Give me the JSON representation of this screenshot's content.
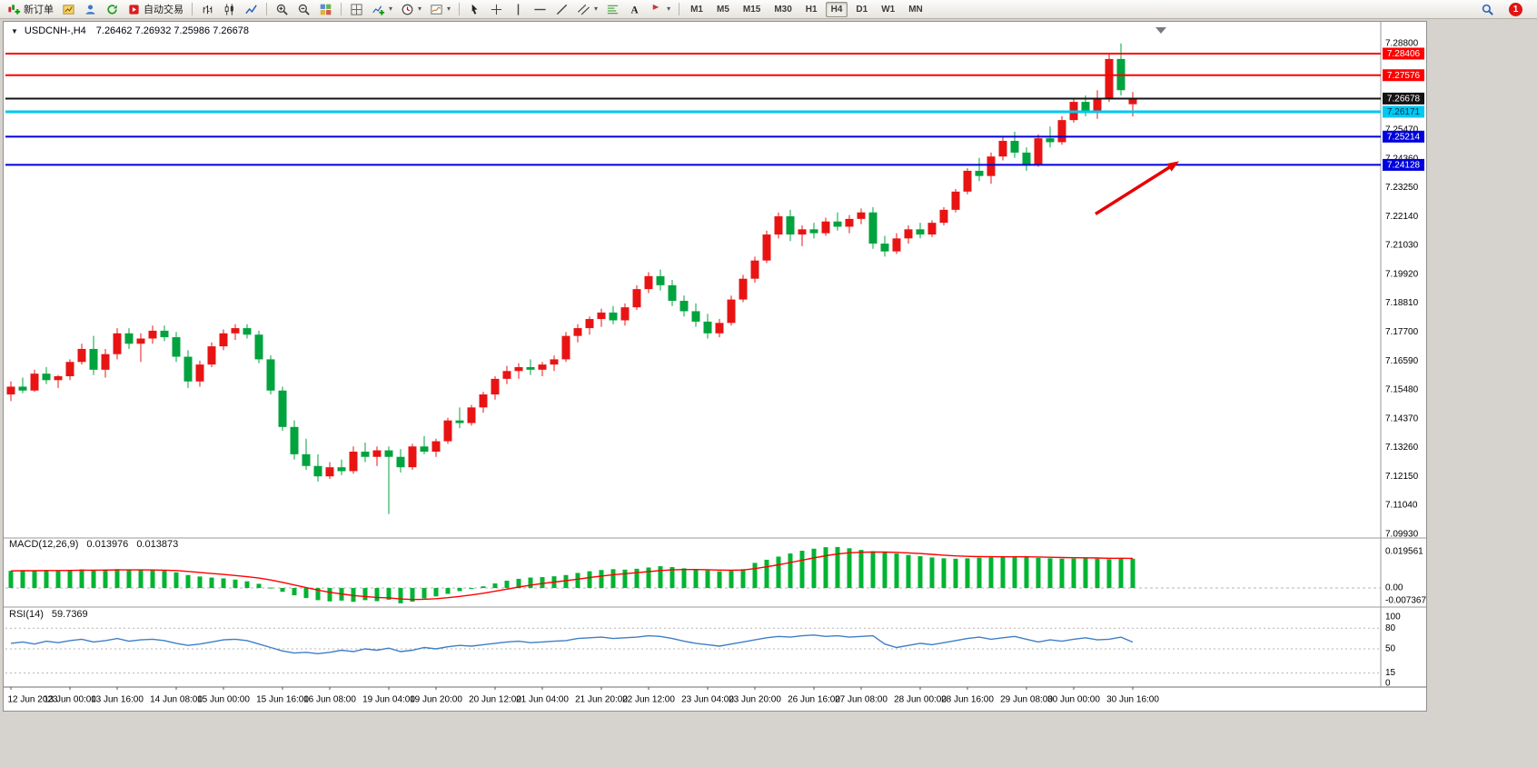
{
  "window": {
    "background": "#d6d3ce",
    "accent_red": "#e01414"
  },
  "toolbar": {
    "groups": [
      {
        "name": "trade",
        "items": [
          {
            "name": "new-order-button",
            "icon": "new-order-icon",
            "label": "新订单"
          },
          {
            "name": "new-chart-button",
            "icon": "new-chart-icon"
          },
          {
            "name": "profiles-button",
            "icon": "profiles-icon"
          },
          {
            "name": "data-window-button",
            "icon": "data-window-icon"
          },
          {
            "name": "autotrading-button",
            "icon": "autotrading-icon",
            "label": "自动交易"
          }
        ]
      },
      {
        "name": "chart-type",
        "items": [
          {
            "name": "bar-chart-button",
            "icon": "bar-chart-icon"
          },
          {
            "name": "candlestick-button",
            "icon": "candlestick-icon"
          },
          {
            "name": "line-chart-button",
            "icon": "line-chart-icon"
          }
        ]
      },
      {
        "name": "zoom",
        "items": [
          {
            "name": "zoom-in-button",
            "icon": "zoom-in-icon"
          },
          {
            "name": "zoom-out-button",
            "icon": "zoom-out-icon"
          },
          {
            "name": "tile-windows-button",
            "icon": "tile-windows-icon"
          }
        ]
      },
      {
        "name": "chart-tools",
        "items": [
          {
            "name": "auto-arrange-button",
            "icon": "auto-arrange-icon"
          },
          {
            "name": "indicators-button",
            "icon": "indicators-icon",
            "caret": true
          },
          {
            "name": "periods-button",
            "icon": "periods-icon",
            "caret": true
          },
          {
            "name": "templates-button",
            "icon": "templates-icon",
            "caret": true
          }
        ]
      },
      {
        "name": "objects",
        "items": [
          {
            "name": "cursor-button",
            "icon": "cursor-icon"
          },
          {
            "name": "crosshair-button",
            "icon": "crosshair-icon"
          },
          {
            "name": "vertical-line-button",
            "icon": "vertical-line-icon"
          },
          {
            "name": "horizontal-line-button",
            "icon": "horizontal-line-icon"
          },
          {
            "name": "trendline-button",
            "icon": "trendline-icon"
          },
          {
            "name": "channel-button",
            "icon": "channel-icon",
            "caret": true
          },
          {
            "name": "fibonacci-button",
            "icon": "fibonacci-icon"
          },
          {
            "name": "text-button",
            "icon": "text-icon"
          },
          {
            "name": "arrow-label-button",
            "icon": "arrow-label-icon",
            "caret": true
          }
        ]
      }
    ],
    "timeframes": [
      {
        "label": "M1"
      },
      {
        "label": "M5"
      },
      {
        "label": "M15"
      },
      {
        "label": "M30"
      },
      {
        "label": "H1"
      },
      {
        "label": "H4",
        "active": true
      },
      {
        "label": "D1"
      },
      {
        "label": "W1"
      },
      {
        "label": "MN"
      }
    ],
    "right_items": [
      {
        "name": "search-button",
        "icon": "search-icon"
      },
      {
        "name": "notifications-button",
        "icon": "notification-icon",
        "badge": "1"
      }
    ]
  },
  "chart": {
    "header": {
      "collapse_glyph": "▼",
      "symbol": "USDCNH-,H4",
      "ohlc": "7.26462 7.26932 7.25986 7.26678"
    }
  },
  "chart_data": [
    {
      "type": "candlestick",
      "title": "USDCNH-,H4",
      "timeframe": "H4",
      "last_bar": {
        "open": 7.26462,
        "high": 7.26932,
        "low": 7.25986,
        "close": 7.26678
      },
      "up_color": "#e81414",
      "down_color": "#00a33e",
      "ylim": [
        7.0985,
        7.29
      ],
      "price_ticks": [
        "7.28800",
        "7.26580",
        "7.25470",
        "7.24360",
        "7.23250",
        "7.22140",
        "7.21030",
        "7.19920",
        "7.18810",
        "7.17700",
        "7.16590",
        "7.15480",
        "7.14370",
        "7.13260",
        "7.12150",
        "7.11040",
        "7.09930"
      ],
      "time_labels": [
        "12 Jun 2023",
        "13 Jun 00:00",
        "13 Jun 16:00",
        "14 Jun 08:00",
        "15 Jun 00:00",
        "15 Jun 16:00",
        "16 Jun 08:00",
        "19 Jun 04:00",
        "19 Jun 20:00",
        "20 Jun 12:00",
        "21 Jun 04:00",
        "21 Jun 20:00",
        "22 Jun 12:00",
        "23 Jun 04:00",
        "23 Jun 20:00",
        "26 Jun 16:00",
        "27 Jun 08:00",
        "28 Jun 00:00",
        "28 Jun 16:00",
        "29 Jun 08:00",
        "30 Jun 00:00",
        "30 Jun 16:00"
      ],
      "horizontal_lines": [
        {
          "price": 7.28406,
          "label": "7.28406",
          "color": "#ff0000",
          "badge_bg": "#ff0000",
          "badge_fg": "#ffffff",
          "width": 2
        },
        {
          "price": 7.27576,
          "label": "7.27576",
          "color": "#ff0000",
          "badge_bg": "#ff0000",
          "badge_fg": "#ffffff",
          "width": 2
        },
        {
          "price": 7.26678,
          "label": "7.26678",
          "color": "#141414",
          "badge_bg": "#141414",
          "badge_fg": "#ffffff",
          "width": 2
        },
        {
          "price": 7.26171,
          "label": "7.26171",
          "color": "#00c8f0",
          "badge_bg": "#00c8f0",
          "badge_fg": "#003050",
          "width": 3
        },
        {
          "price": 7.25214,
          "label": "7.25214",
          "color": "#0000dc",
          "badge_bg": "#0000dc",
          "badge_fg": "#ffffff",
          "width": 2
        },
        {
          "price": 7.24128,
          "label": "7.24128",
          "color": "#0000dc",
          "badge_bg": "#0000dc",
          "badge_fg": "#ffffff",
          "width": 2
        }
      ],
      "annotation": {
        "type": "arrow",
        "color": "#e80000",
        "points_to_price": 7.24128
      },
      "candles": [
        [
          7.153,
          7.158,
          7.1505,
          7.156
        ],
        [
          7.156,
          7.1595,
          7.1535,
          7.1545
        ],
        [
          7.1545,
          7.1625,
          7.154,
          7.161
        ],
        [
          7.161,
          7.1635,
          7.157,
          7.1585
        ],
        [
          7.1585,
          7.1605,
          7.1555,
          7.16
        ],
        [
          7.16,
          7.1665,
          7.1585,
          7.1655
        ],
        [
          7.1655,
          7.1725,
          7.1645,
          7.1705
        ],
        [
          7.1705,
          7.1755,
          7.1605,
          7.1625
        ],
        [
          7.1625,
          7.1705,
          7.1595,
          7.1685
        ],
        [
          7.1685,
          7.1785,
          7.1665,
          7.1765
        ],
        [
          7.1765,
          7.1785,
          7.1705,
          7.1725
        ],
        [
          7.1725,
          7.1765,
          7.1655,
          7.1745
        ],
        [
          7.1745,
          7.1795,
          7.1725,
          7.1775
        ],
        [
          7.1775,
          7.1795,
          7.1735,
          7.175
        ],
        [
          7.175,
          7.177,
          7.1655,
          7.1675
        ],
        [
          7.1675,
          7.17,
          7.1555,
          7.158
        ],
        [
          7.158,
          7.166,
          7.156,
          7.1645
        ],
        [
          7.1645,
          7.173,
          7.1635,
          7.1715
        ],
        [
          7.1715,
          7.178,
          7.17,
          7.1765
        ],
        [
          7.1765,
          7.18,
          7.174,
          7.1785
        ],
        [
          7.1785,
          7.18,
          7.1745,
          7.176
        ],
        [
          7.176,
          7.1775,
          7.165,
          7.1665
        ],
        [
          7.1665,
          7.168,
          7.153,
          7.1545
        ],
        [
          7.1545,
          7.156,
          7.139,
          7.1405
        ],
        [
          7.1405,
          7.143,
          7.128,
          7.13
        ],
        [
          7.13,
          7.136,
          7.124,
          7.1255
        ],
        [
          7.1255,
          7.13,
          7.1195,
          7.1215
        ],
        [
          7.1215,
          7.127,
          7.1205,
          7.125
        ],
        [
          7.125,
          7.128,
          7.122,
          7.1235
        ],
        [
          7.1235,
          7.133,
          7.1225,
          7.131
        ],
        [
          7.131,
          7.1345,
          7.127,
          7.129
        ],
        [
          7.129,
          7.133,
          7.1255,
          7.1315
        ],
        [
          7.1315,
          7.133,
          7.107,
          7.129
        ],
        [
          7.129,
          7.132,
          7.123,
          7.125
        ],
        [
          7.125,
          7.134,
          7.124,
          7.133
        ],
        [
          7.133,
          7.137,
          7.13,
          7.131
        ],
        [
          7.131,
          7.136,
          7.129,
          7.135
        ],
        [
          7.135,
          7.144,
          7.134,
          7.143
        ],
        [
          7.143,
          7.148,
          7.14,
          7.142
        ],
        [
          7.142,
          7.149,
          7.141,
          7.148
        ],
        [
          7.148,
          7.154,
          7.146,
          7.153
        ],
        [
          7.153,
          7.16,
          7.151,
          7.159
        ],
        [
          7.159,
          7.164,
          7.157,
          7.162
        ],
        [
          7.162,
          7.165,
          7.159,
          7.1635
        ],
        [
          7.1635,
          7.1665,
          7.1605,
          7.1625
        ],
        [
          7.1625,
          7.1655,
          7.16,
          7.1645
        ],
        [
          7.1645,
          7.168,
          7.162,
          7.1665
        ],
        [
          7.1665,
          7.177,
          7.1655,
          7.1755
        ],
        [
          7.1755,
          7.18,
          7.173,
          7.1785
        ],
        [
          7.1785,
          7.183,
          7.176,
          7.182
        ],
        [
          7.182,
          7.186,
          7.179,
          7.1845
        ],
        [
          7.1845,
          7.187,
          7.18,
          7.1815
        ],
        [
          7.1815,
          7.188,
          7.1795,
          7.1865
        ],
        [
          7.1865,
          7.195,
          7.1855,
          7.1935
        ],
        [
          7.1935,
          7.2,
          7.192,
          7.1985
        ],
        [
          7.1985,
          7.201,
          7.193,
          7.195
        ],
        [
          7.195,
          7.197,
          7.187,
          7.189
        ],
        [
          7.189,
          7.191,
          7.183,
          7.185
        ],
        [
          7.185,
          7.188,
          7.179,
          7.181
        ],
        [
          7.181,
          7.184,
          7.1745,
          7.1765
        ],
        [
          7.1765,
          7.182,
          7.175,
          7.1805
        ],
        [
          7.1805,
          7.191,
          7.1795,
          7.1895
        ],
        [
          7.1895,
          7.199,
          7.1885,
          7.1975
        ],
        [
          7.1975,
          7.206,
          7.196,
          7.2045
        ],
        [
          7.2045,
          7.216,
          7.2035,
          7.2145
        ],
        [
          7.2145,
          7.223,
          7.213,
          7.2215
        ],
        [
          7.2215,
          7.224,
          7.212,
          7.2145
        ],
        [
          7.2145,
          7.218,
          7.21,
          7.2165
        ],
        [
          7.2165,
          7.219,
          7.213,
          7.215
        ],
        [
          7.215,
          7.221,
          7.214,
          7.2195
        ],
        [
          7.2195,
          7.223,
          7.216,
          7.2175
        ],
        [
          7.2175,
          7.222,
          7.215,
          7.2205
        ],
        [
          7.2205,
          7.2245,
          7.2185,
          7.223
        ],
        [
          7.223,
          7.225,
          7.209,
          7.211
        ],
        [
          7.211,
          7.214,
          7.206,
          7.208
        ],
        [
          7.208,
          7.215,
          7.207,
          7.213
        ],
        [
          7.213,
          7.218,
          7.211,
          7.2165
        ],
        [
          7.2165,
          7.219,
          7.213,
          7.2145
        ],
        [
          7.2145,
          7.22,
          7.2135,
          7.219
        ],
        [
          7.219,
          7.225,
          7.218,
          7.224
        ],
        [
          7.224,
          7.232,
          7.223,
          7.231
        ],
        [
          7.231,
          7.24,
          7.23,
          7.239
        ],
        [
          7.239,
          7.244,
          7.235,
          7.237
        ],
        [
          7.237,
          7.246,
          7.234,
          7.2445
        ],
        [
          7.2445,
          7.252,
          7.243,
          7.2505
        ],
        [
          7.2505,
          7.254,
          7.244,
          7.246
        ],
        [
          7.246,
          7.248,
          7.239,
          7.2415
        ],
        [
          7.2415,
          7.253,
          7.2405,
          7.2515
        ],
        [
          7.2515,
          7.256,
          7.248,
          7.25
        ],
        [
          7.25,
          7.26,
          7.249,
          7.2585
        ],
        [
          7.2585,
          7.267,
          7.2575,
          7.2655
        ],
        [
          7.2655,
          7.268,
          7.26,
          7.262
        ],
        [
          7.262,
          7.27,
          7.259,
          7.2665
        ],
        [
          7.2665,
          7.284,
          7.2655,
          7.282
        ],
        [
          7.282,
          7.288,
          7.268,
          7.27
        ],
        [
          7.2646,
          7.2693,
          7.2599,
          7.2668
        ]
      ]
    },
    {
      "type": "bar",
      "label": "MACD(12,26,9)",
      "value_main": "0.013976",
      "value_signal": "0.013873",
      "ylim": [
        -0.007367,
        0.019561
      ],
      "scale_ticks": [
        {
          "v": 0.019561,
          "t": "0.019561"
        },
        {
          "v": 0,
          "t": "0.00"
        },
        {
          "v": -0.007367,
          "t": "-0.007367"
        }
      ],
      "histogram_color": "#00b432",
      "signal_color": "#ff0000",
      "histogram": [
        0.0082,
        0.0085,
        0.0083,
        0.0086,
        0.0084,
        0.0087,
        0.0089,
        0.0086,
        0.0088,
        0.009,
        0.0087,
        0.0085,
        0.0086,
        0.0082,
        0.0075,
        0.0062,
        0.0055,
        0.005,
        0.0046,
        0.004,
        0.0032,
        0.002,
        0.0002,
        -0.0018,
        -0.0035,
        -0.0048,
        -0.0058,
        -0.0064,
        -0.006,
        -0.0066,
        -0.0058,
        -0.0063,
        -0.0056,
        -0.0073,
        -0.0065,
        -0.005,
        -0.004,
        -0.0028,
        -0.0015,
        -0.0005,
        0.0008,
        0.0022,
        0.0035,
        0.0044,
        0.005,
        0.0052,
        0.0056,
        0.0062,
        0.0072,
        0.008,
        0.0086,
        0.009,
        0.0088,
        0.0092,
        0.0098,
        0.0104,
        0.01,
        0.0094,
        0.0088,
        0.0084,
        0.008,
        0.0082,
        0.009,
        0.012,
        0.0135,
        0.015,
        0.0165,
        0.0178,
        0.0188,
        0.0195,
        0.0196,
        0.019,
        0.0182,
        0.0176,
        0.017,
        0.0165,
        0.0158,
        0.0152,
        0.0146,
        0.0142,
        0.014,
        0.0142,
        0.0145,
        0.0147,
        0.0148,
        0.015,
        0.0148,
        0.0144,
        0.0142,
        0.014,
        0.0141,
        0.0143,
        0.014,
        0.0138,
        0.0141,
        0.014
      ]
    },
    {
      "type": "line",
      "label": "RSI(14)",
      "value": "59.7369",
      "ylim": [
        0,
        100
      ],
      "levels": [
        80,
        50,
        15
      ],
      "scale_ticks": [
        {
          "v": 100,
          "t": "100"
        },
        {
          "v": 80,
          "t": "80"
        },
        {
          "v": 50,
          "t": "50"
        },
        {
          "v": 15,
          "t": "15"
        },
        {
          "v": 0,
          "t": "0"
        }
      ],
      "line_color": "#3f7ec8",
      "values": [
        58,
        60,
        57,
        61,
        59,
        62,
        64,
        60,
        62,
        65,
        61,
        63,
        64,
        62,
        58,
        55,
        57,
        60,
        63,
        64,
        62,
        57,
        52,
        47,
        44,
        45,
        43,
        45,
        48,
        46,
        50,
        48,
        51,
        46,
        48,
        52,
        50,
        53,
        55,
        54,
        56,
        58,
        60,
        61,
        59,
        60,
        61,
        62,
        65,
        66,
        67,
        65,
        66,
        67,
        69,
        68,
        65,
        61,
        58,
        56,
        54,
        57,
        60,
        63,
        66,
        68,
        67,
        69,
        70,
        68,
        69,
        67,
        68,
        69,
        57,
        52,
        55,
        58,
        56,
        59,
        62,
        65,
        67,
        64,
        66,
        68,
        64,
        60,
        63,
        61,
        64,
        66,
        63,
        64,
        67,
        59.74
      ]
    }
  ]
}
